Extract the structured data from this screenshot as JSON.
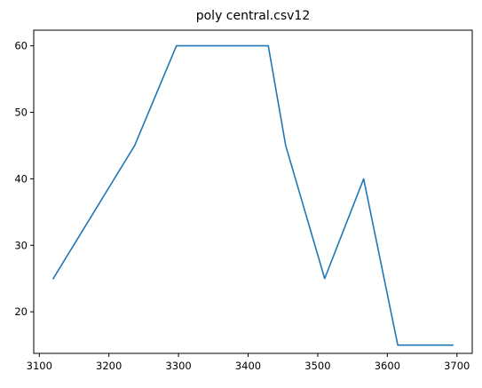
{
  "chart_data": {
    "type": "line",
    "title": "poly central.csv12",
    "xlabel": "",
    "ylabel": "",
    "xlim": [
      3092,
      3722
    ],
    "ylim": [
      13.75,
      62.35
    ],
    "x_ticks": [
      3100,
      3200,
      3300,
      3400,
      3500,
      3600,
      3700
    ],
    "y_ticks": [
      20,
      30,
      40,
      50,
      60
    ],
    "grid": false,
    "legend": "none",
    "series": [
      {
        "color": "#1f77b4",
        "x": [
          3120,
          3237,
          3297,
          3429,
          3454,
          3510,
          3566,
          3615,
          3694
        ],
        "y": [
          25,
          45,
          60,
          60,
          45,
          25,
          40,
          15,
          15
        ]
      }
    ]
  }
}
